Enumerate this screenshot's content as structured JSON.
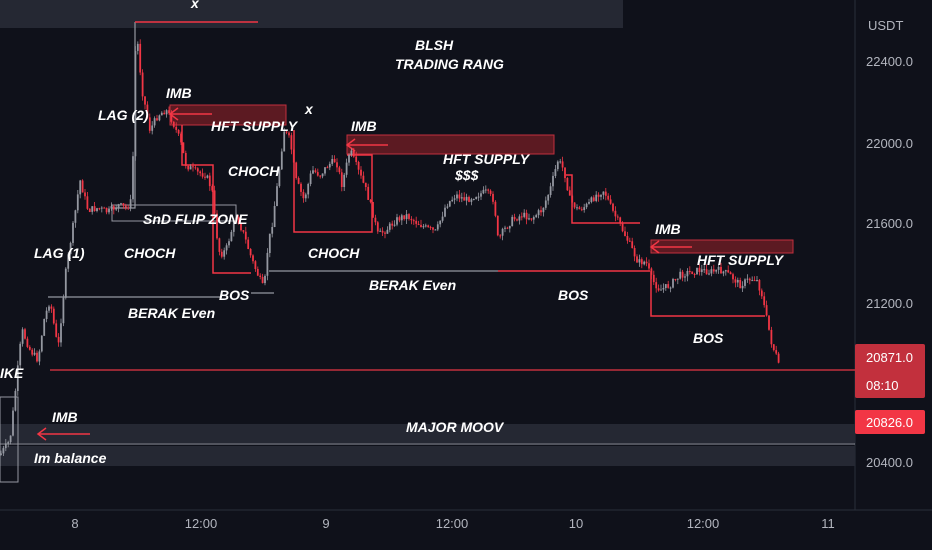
{
  "chart_data": {
    "type": "candlestick",
    "currency_label": "USDT",
    "y_ticks": [
      "22400.0",
      "22000.0",
      "21600.0",
      "21200.0",
      "20400.0"
    ],
    "x_ticks": [
      "8",
      "12:00",
      "9",
      "12:00",
      "10",
      "12:00",
      "11"
    ],
    "last_price": "20871.0",
    "countdown": "08:10",
    "marked_price": "20826.0",
    "ylim": [
      20280,
      22600
    ],
    "colors": {
      "up": "#9598a1",
      "down": "#f23645",
      "bg": "#0f111a",
      "grid": "#1c1f2a"
    },
    "annotations": {
      "title_line1": "BLSH",
      "title_line2": "TRADING RANG",
      "lag2": "LAG (2)",
      "lag1": "LAG (1)",
      "imb1": "IMB",
      "imb2": "IMB",
      "imb3": "IMB",
      "imb4": "IMB",
      "hft1": "HFT SUPPLY",
      "hft2": "HFT SUPPLY",
      "hft3": "HFT SUPPLY",
      "x1": "x",
      "x2": "x",
      "choch1": "CHOCH",
      "choch2": "CHOCH",
      "choch3": "CHOCH",
      "snd": "SnD FLIP ZONE",
      "bos1": "BOS",
      "bos2": "BOS",
      "bos3": "BOS",
      "berak1": "BERAK Even",
      "berak2": "BERAK Even",
      "dollars": "$$$",
      "ike": "IKE",
      "major": "MAJOR MOOV",
      "imbalance": "Im balance"
    }
  }
}
